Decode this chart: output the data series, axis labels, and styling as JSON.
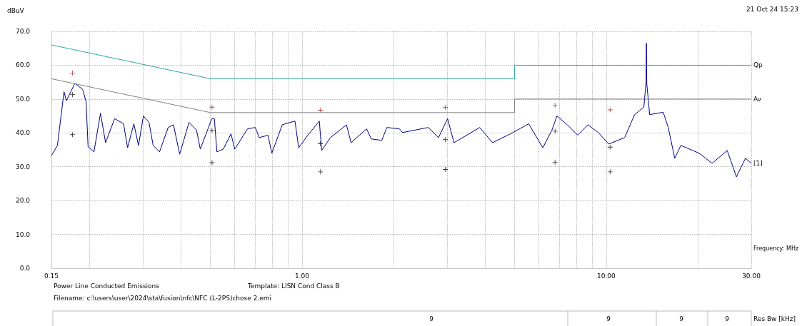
{
  "chart_data": {
    "type": "line",
    "xlabel": "Frequency: MHz",
    "ylabel": "dBuV",
    "log": "x",
    "grid": true,
    "xlim": [
      0.15,
      30
    ],
    "ylim": [
      0,
      70
    ],
    "xticks": [
      {
        "value": 0.15,
        "label": "0.15"
      },
      {
        "value": 0.2,
        "label": null
      },
      {
        "value": 0.3,
        "label": null
      },
      {
        "value": 0.4,
        "label": null
      },
      {
        "value": 0.5,
        "label": null
      },
      {
        "value": 0.6,
        "label": null
      },
      {
        "value": 0.7,
        "label": null
      },
      {
        "value": 0.8,
        "label": null
      },
      {
        "value": 0.9,
        "label": null
      },
      {
        "value": 1,
        "label": "1.00"
      },
      {
        "value": 2,
        "label": null
      },
      {
        "value": 3,
        "label": null
      },
      {
        "value": 4,
        "label": null
      },
      {
        "value": 5,
        "label": null
      },
      {
        "value": 6,
        "label": null
      },
      {
        "value": 7,
        "label": null
      },
      {
        "value": 8,
        "label": null
      },
      {
        "value": 9,
        "label": null
      },
      {
        "value": 10,
        "label": "10.00"
      },
      {
        "value": 20,
        "label": null
      },
      {
        "value": 30,
        "label": "30.00"
      }
    ],
    "yticks": [
      {
        "value": 0,
        "label": "0.0"
      },
      {
        "value": 10,
        "label": "10.0"
      },
      {
        "value": 20,
        "label": "20.0"
      },
      {
        "value": 30,
        "label": "30.0"
      },
      {
        "value": 40,
        "label": "40.0"
      },
      {
        "value": 50,
        "label": "50.0"
      },
      {
        "value": 60,
        "label": "60.0"
      },
      {
        "value": 70,
        "label": "70.0"
      }
    ],
    "series": [
      {
        "name": "[1]",
        "color": "#000080",
        "marker": "none",
        "line_style": "solid",
        "x": [
          0.15,
          0.157,
          0.165,
          0.168,
          0.179,
          0.19,
          0.195,
          0.198,
          0.207,
          0.2175,
          0.226,
          0.242,
          0.259,
          0.267,
          0.28,
          0.29,
          0.301,
          0.314,
          0.324,
          0.34,
          0.363,
          0.378,
          0.396,
          0.425,
          0.45,
          0.463,
          0.505,
          0.515,
          0.525,
          0.551,
          0.584,
          0.601,
          0.662,
          0.702,
          0.723,
          0.773,
          0.796,
          0.861,
          0.948,
          0.975,
          1.045,
          1.14,
          1.16,
          1.24,
          1.4,
          1.45,
          1.63,
          1.69,
          1.83,
          1.9,
          2.09,
          2.14,
          2.6,
          2.81,
          3.01,
          3.16,
          3.84,
          4.23,
          4.94,
          5.56,
          6.19,
          6.63,
          6.89,
          7.45,
          8.06,
          8.71,
          9.42,
          10.2,
          11.5,
          12.4,
          13.3,
          13.53,
          13.56,
          13.6,
          13.9,
          15.4,
          16,
          16.8,
          17.6,
          20.2,
          22.3,
          25,
          26.8,
          28.7,
          30
        ],
        "values": [
          33.3,
          36.3,
          52.2,
          49.5,
          54.6,
          52.9,
          49.2,
          35.9,
          34.4,
          45.8,
          37.1,
          44.2,
          42.7,
          35.6,
          42.7,
          36.3,
          45,
          43.1,
          36.3,
          34.4,
          41.6,
          42.4,
          33.7,
          43.1,
          40.8,
          35.2,
          44.2,
          44.2,
          34.4,
          35.2,
          39.7,
          35.2,
          41.2,
          41.6,
          38.6,
          39.3,
          34,
          42.4,
          43.5,
          35.6,
          39.3,
          43.5,
          34.8,
          38.6,
          42.4,
          37.1,
          41.2,
          38.2,
          37.8,
          41.6,
          41.2,
          40.1,
          41.6,
          38.6,
          44.2,
          37.1,
          41.6,
          37.1,
          40.1,
          42.7,
          35.6,
          40.8,
          45,
          42.4,
          39.3,
          42.4,
          40.1,
          36.7,
          38.6,
          45.4,
          47.6,
          55.2,
          66.5,
          54.5,
          45.4,
          46.1,
          41.6,
          32.5,
          36.3,
          34,
          31,
          34.8,
          27,
          32.5,
          31
        ]
      },
      {
        "name": "Qp",
        "color": "#2ea89a",
        "marker": "none",
        "line_style": "solid",
        "x": [
          0.15,
          0.5,
          5,
          5,
          30
        ],
        "values": [
          66,
          56,
          56,
          60,
          60
        ]
      },
      {
        "name": "Av",
        "color": "#808080",
        "marker": "none",
        "line_style": "solid",
        "x": [
          0.15,
          0.5,
          5,
          5,
          30
        ],
        "values": [
          56,
          46,
          46,
          50,
          50
        ]
      },
      {
        "type": "scatter",
        "color": "#a01010",
        "marker": "cross",
        "x": [
          0.176,
          0.506,
          1.15,
          2.96,
          6.79,
          10.3
        ],
        "values": [
          57.7,
          47.6,
          46.7,
          47.5,
          48.1,
          46.8
        ]
      },
      {
        "type": "scatter",
        "color": "#000000",
        "marker": "cross",
        "x": [
          0.176,
          0.506,
          1.15,
          2.96,
          6.79,
          10.3,
          0.176,
          0.506,
          1.15,
          2.96,
          6.79,
          10.3
        ],
        "values": [
          51.3,
          40.7,
          36.8,
          38,
          40.5,
          35.8,
          39.5,
          31.2,
          28.5,
          29.2,
          31.3,
          28.5
        ]
      }
    ],
    "annotations": [
      "21 Oct 24 15:23",
      "Power Line Conducted Emissions",
      "Template: LISN Cond Class B",
      "Filename: c:\\users\\user\\2024\\sta\\fusion\\nfc\\NFC (L-2PS)chose 2.emi",
      "9",
      "9",
      "9",
      "9",
      "Res Bw [kHz]"
    ]
  }
}
